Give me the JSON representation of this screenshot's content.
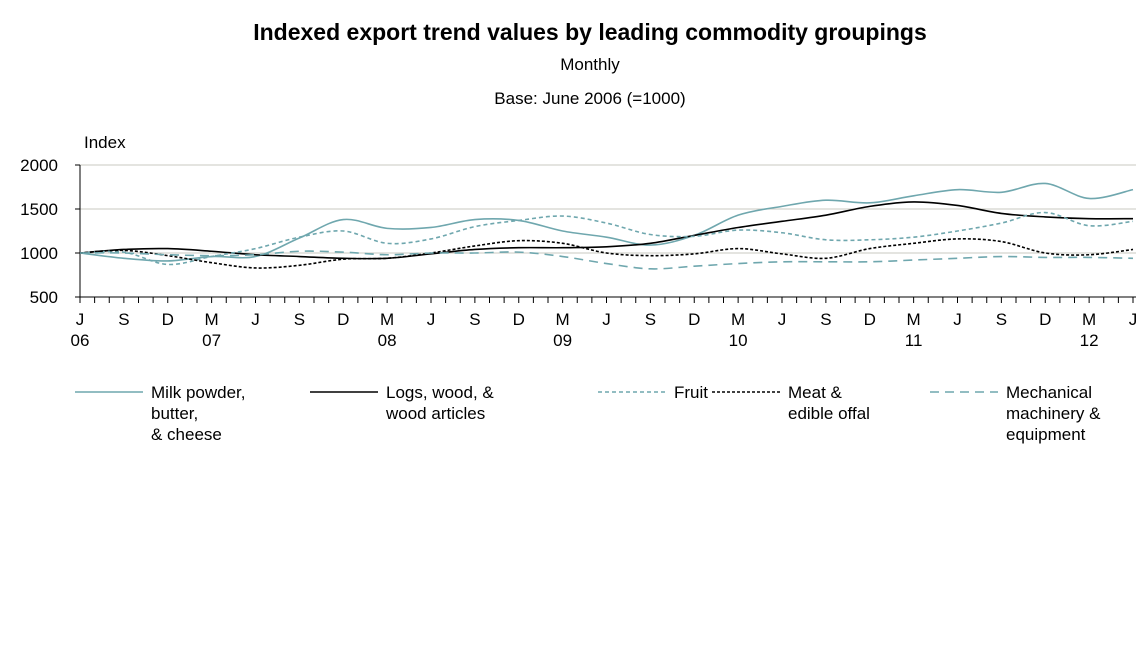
{
  "chart_data": {
    "type": "line",
    "title": "Indexed export trend values by leading commodity  groupings",
    "subtitle": "Monthly",
    "subtitle2": "Base: June 2006 (=1000)",
    "y_label": "Index",
    "categories": [
      "J\n06",
      "S",
      "D",
      "M\n07",
      "J",
      "S",
      "D",
      "M\n08",
      "J",
      "S",
      "D",
      "M\n09",
      "J",
      "S",
      "D",
      "M\n10",
      "J",
      "S",
      "D",
      "M\n11",
      "J",
      "S",
      "D",
      "M\n12",
      "J"
    ],
    "ylim": [
      500,
      2000
    ],
    "yticks": [
      500,
      1000,
      1500,
      2000
    ],
    "grid": true,
    "series": [
      {
        "name": "Milk powder,\nbutter,\n& cheese",
        "color": "#6fa7ae",
        "dash": "solid",
        "values": [
          1000,
          940,
          910,
          960,
          960,
          1170,
          1380,
          1280,
          1290,
          1380,
          1370,
          1250,
          1180,
          1090,
          1200,
          1430,
          1530,
          1600,
          1570,
          1650,
          1720,
          1690,
          1790,
          1620,
          1720
        ]
      },
      {
        "name": "Logs, wood, &\nwood articles",
        "color": "#000000",
        "dash": "solid",
        "values": [
          1000,
          1040,
          1050,
          1020,
          980,
          960,
          940,
          940,
          990,
          1040,
          1060,
          1060,
          1070,
          1110,
          1200,
          1290,
          1360,
          1430,
          1530,
          1580,
          1540,
          1450,
          1410,
          1390,
          1390
        ]
      },
      {
        "name": "Fruit",
        "color": "#6fa7ae",
        "dash": "short",
        "values": [
          1000,
          1010,
          870,
          960,
          1050,
          1180,
          1250,
          1110,
          1160,
          1300,
          1370,
          1420,
          1340,
          1210,
          1190,
          1260,
          1230,
          1150,
          1150,
          1180,
          1250,
          1340,
          1460,
          1310,
          1360
        ]
      },
      {
        "name": "Meat &\nedible offal",
        "color": "#000000",
        "dash": "dotted",
        "values": [
          1000,
          1030,
          970,
          890,
          830,
          860,
          930,
          940,
          1000,
          1080,
          1140,
          1110,
          1000,
          970,
          990,
          1050,
          990,
          940,
          1050,
          1110,
          1160,
          1130,
          1000,
          980,
          1040
        ]
      },
      {
        "name": "Mechanical\nmachinery &\nequipment",
        "color": "#6fa7ae",
        "dash": "long",
        "values": [
          1000,
          1000,
          980,
          970,
          980,
          1020,
          1010,
          980,
          1000,
          1000,
          1010,
          960,
          880,
          820,
          850,
          880,
          900,
          900,
          900,
          920,
          940,
          960,
          950,
          950,
          940
        ]
      }
    ]
  }
}
